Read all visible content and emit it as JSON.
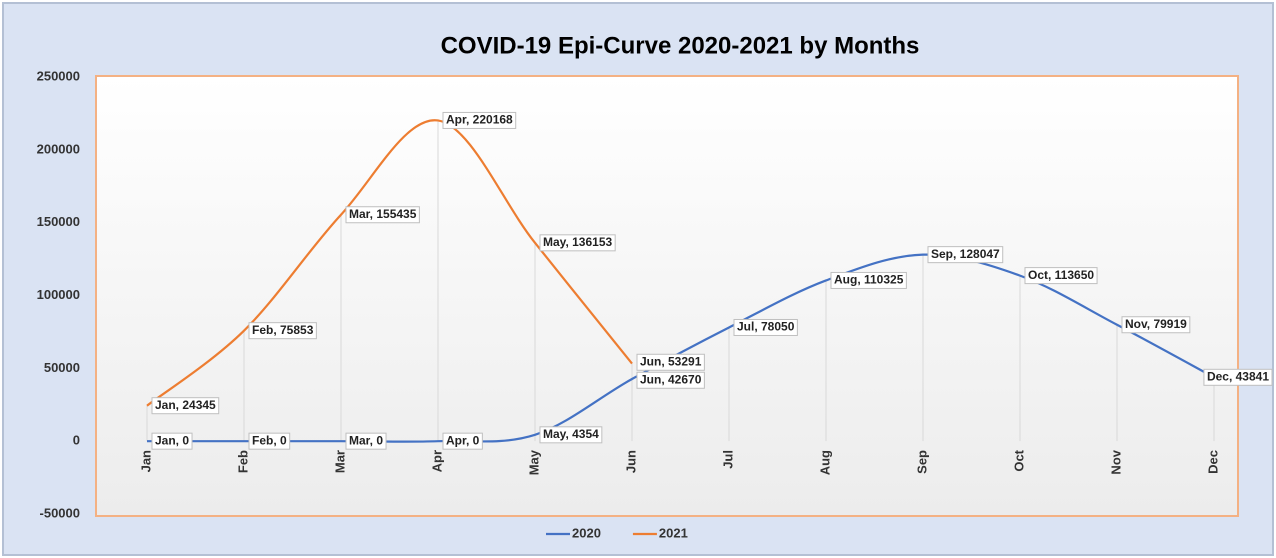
{
  "chart_data": {
    "type": "line",
    "title": "COVID-19 Epi-Curve 2020-2021 by Months",
    "categories": [
      "Jan",
      "Feb",
      "Mar",
      "Apr",
      "May",
      "Jun",
      "Jul",
      "Aug",
      "Sep",
      "Oct",
      "Nov",
      "Dec"
    ],
    "series": [
      {
        "name": "2020",
        "color": "#4472c4",
        "values": [
          0,
          0,
          0,
          0,
          4354,
          42670,
          78050,
          110325,
          128047,
          113650,
          79919,
          43841
        ],
        "value_labels": [
          "Jan, 0",
          "Feb, 0",
          "Mar, 0",
          "Apr, 0",
          "May, 4354",
          "Jun, 42670",
          "Jul, 78050",
          "Aug, 110325",
          "Sep, 128047",
          "Oct, 113650",
          "Nov, 79919",
          "Dec, 43841"
        ]
      },
      {
        "name": "2021",
        "color": "#ed7d31",
        "values": [
          24345,
          75853,
          155435,
          220168,
          136153,
          53291,
          null,
          null,
          null,
          null,
          null,
          null
        ],
        "value_labels": [
          "Jan, 24345",
          "Feb, 75853",
          "Mar, 155435",
          "Apr, 220168",
          "May, 136153",
          "Jun, 53291",
          null,
          null,
          null,
          null,
          null,
          null
        ]
      }
    ],
    "ylim": [
      -50000,
      250000
    ],
    "yticks": [
      -50000,
      0,
      50000,
      100000,
      150000,
      200000,
      250000
    ],
    "smooth": true,
    "legend": "bottom"
  }
}
